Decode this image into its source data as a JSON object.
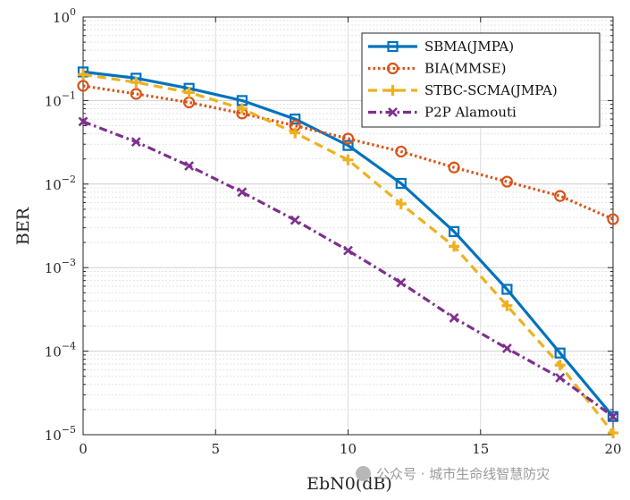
{
  "chart_data": {
    "type": "line",
    "xlabel": "EbN0(dB)",
    "ylabel": "BER",
    "yscale": "log",
    "xlim": [
      0,
      20
    ],
    "ylim": [
      1e-05,
      1
    ],
    "grid": true,
    "legend_position": "top-right",
    "x_ticks": [
      "0",
      "5",
      "10",
      "15",
      "20"
    ],
    "y_ticks": [
      {
        "base": "10",
        "exp": "0"
      },
      {
        "base": "10",
        "exp": "−1"
      },
      {
        "base": "10",
        "exp": "−2"
      },
      {
        "base": "10",
        "exp": "−3"
      },
      {
        "base": "10",
        "exp": "−4"
      },
      {
        "base": "10",
        "exp": "−5"
      }
    ],
    "x": [
      0,
      2,
      4,
      6,
      8,
      10,
      12,
      14,
      16,
      18,
      20
    ],
    "series": [
      {
        "name": "SBMA(JMPA)",
        "color": "#0072BD",
        "line_style": "solid",
        "marker": "square",
        "values": [
          0.22,
          0.185,
          0.14,
          0.1,
          0.06,
          0.029,
          0.0102,
          0.0027,
          0.00055,
          9.5e-05,
          1.65e-05
        ]
      },
      {
        "name": "BIA(MMSE)",
        "color": "#D95319",
        "line_style": "dotted",
        "marker": "circle",
        "values": [
          0.15,
          0.12,
          0.095,
          0.07,
          0.05,
          0.035,
          0.0245,
          0.0158,
          0.0107,
          0.0072,
          0.0038
        ]
      },
      {
        "name": "STBC-SCMA(JMPA)",
        "color": "#EDB120",
        "line_style": "dashed",
        "marker": "plus",
        "values": [
          0.205,
          0.165,
          0.125,
          0.08,
          0.041,
          0.0195,
          0.0058,
          0.0018,
          0.00035,
          6.8e-05,
          1.05e-05
        ]
      },
      {
        "name": "P2P Alamouti",
        "color": "#7E2F8E",
        "line_style": "dashdot",
        "marker": "x",
        "values": [
          0.056,
          0.032,
          0.0165,
          0.008,
          0.0037,
          0.0016,
          0.00066,
          0.00025,
          0.000108,
          4.8e-05,
          1.65e-05
        ]
      }
    ]
  },
  "watermark": {
    "text": "公众号 · 城市生命线智慧防灾",
    "icon": "wechat-icon"
  }
}
